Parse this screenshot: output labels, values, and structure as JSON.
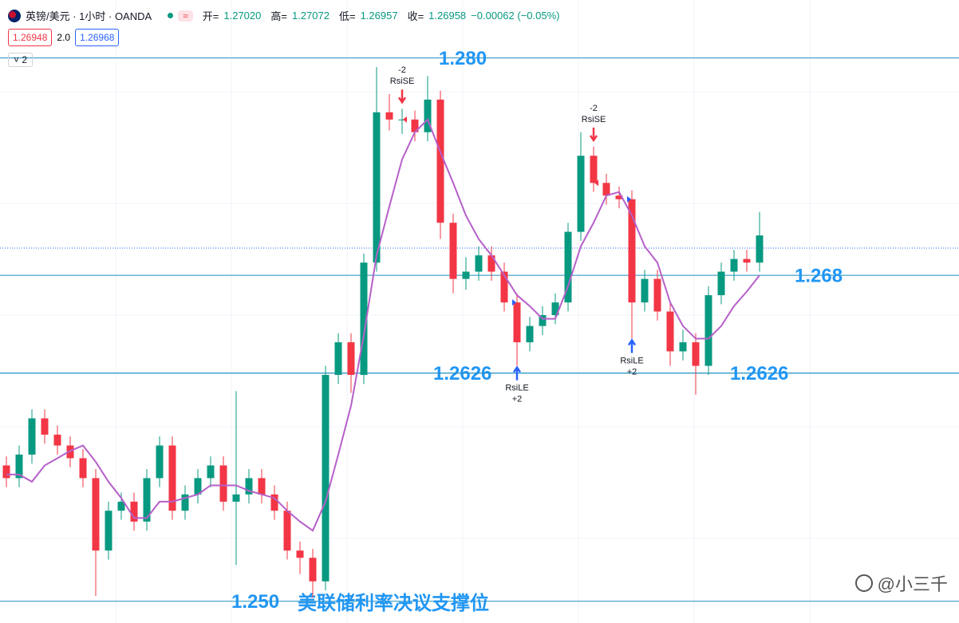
{
  "header": {
    "symbol": "英镑/美元 · 1小时 · OANDA",
    "badge": "≈",
    "ohlc": [
      {
        "key": "开=",
        "value": "1.27020"
      },
      {
        "key": "高=",
        "value": "1.27072"
      },
      {
        "key": "低=",
        "value": "1.26957"
      },
      {
        "key": "收=",
        "value": "1.26958"
      }
    ],
    "change": "−0.00062 (−0.05%)",
    "sell": "1.26948",
    "spread": "2.0",
    "buy": "1.26968",
    "indicators": "˅ 2"
  },
  "watermark": "@小三千",
  "chart_data": {
    "type": "candlestick",
    "ylim": [
      1.2488,
      1.2832
    ],
    "up_color": "#089981",
    "down_color": "#f23645",
    "open": [
      1.2575,
      1.2568,
      1.2581,
      1.2601,
      1.2592,
      1.2586,
      1.2579,
      1.2568,
      1.2528,
      1.255,
      1.2555,
      1.2544,
      1.2568,
      1.2586,
      1.255,
      1.2559,
      1.2568,
      1.2575,
      1.2555,
      1.2559,
      1.2568,
      1.2559,
      1.255,
      1.2528,
      1.2524,
      1.2511,
      1.2625,
      1.2643,
      1.2625,
      1.2687,
      1.277,
      1.2766,
      1.2766,
      1.2759,
      1.2777,
      1.2709,
      1.2678,
      1.2682,
      1.2691,
      1.2682,
      1.2665,
      1.2643,
      1.2652,
      1.2658,
      1.2665,
      1.2704,
      1.2746,
      1.2731,
      1.2724,
      1.2722,
      1.2665,
      1.2678,
      1.266,
      1.2638,
      1.2643,
      1.263,
      1.2669,
      1.2682,
      1.2689,
      1.2687
    ],
    "high": [
      1.258,
      1.2586,
      1.2606,
      1.2606,
      1.2597,
      1.2591,
      1.2584,
      1.2573,
      1.2555,
      1.256,
      1.256,
      1.2573,
      1.2591,
      1.2591,
      1.2564,
      1.2573,
      1.258,
      1.258,
      1.2616,
      1.2573,
      1.2573,
      1.2564,
      1.2555,
      1.2533,
      1.2529,
      1.263,
      1.2648,
      1.2648,
      1.2692,
      1.2795,
      1.278,
      1.2772,
      1.2771,
      1.279,
      1.2782,
      1.2714,
      1.269,
      1.2696,
      1.2696,
      1.2687,
      1.267,
      1.2657,
      1.2663,
      1.267,
      1.2709,
      1.2759,
      1.2751,
      1.2736,
      1.2729,
      1.2727,
      1.2683,
      1.2683,
      1.2665,
      1.265,
      1.2648,
      1.2674,
      1.2687,
      1.2694,
      1.2694,
      1.2715
    ],
    "low": [
      1.2563,
      1.2563,
      1.2576,
      1.2587,
      1.2581,
      1.2574,
      1.2563,
      1.2503,
      1.2523,
      1.2545,
      1.2539,
      1.2539,
      1.2563,
      1.2545,
      1.2545,
      1.2554,
      1.2563,
      1.255,
      1.252,
      1.2554,
      1.2554,
      1.2545,
      1.2523,
      1.2515,
      1.2502,
      1.2506,
      1.262,
      1.2615,
      1.262,
      1.2682,
      1.276,
      1.2758,
      1.2754,
      1.2754,
      1.27,
      1.267,
      1.2672,
      1.2677,
      1.2677,
      1.266,
      1.263,
      1.2638,
      1.2647,
      1.2653,
      1.266,
      1.2699,
      1.2726,
      1.2719,
      1.2717,
      1.2645,
      1.266,
      1.2655,
      1.263,
      1.2633,
      1.2614,
      1.2625,
      1.2664,
      1.2677,
      1.2682,
      1.2682
    ],
    "close": [
      1.2568,
      1.2581,
      1.2601,
      1.2592,
      1.2586,
      1.2579,
      1.2568,
      1.2528,
      1.255,
      1.2555,
      1.2544,
      1.2568,
      1.2586,
      1.255,
      1.2559,
      1.2568,
      1.2575,
      1.2555,
      1.2559,
      1.2568,
      1.2559,
      1.255,
      1.2528,
      1.2524,
      1.2511,
      1.2625,
      1.2643,
      1.2625,
      1.2687,
      1.277,
      1.2766,
      1.2766,
      1.2759,
      1.2777,
      1.2709,
      1.2678,
      1.2682,
      1.2691,
      1.2682,
      1.2665,
      1.2643,
      1.2652,
      1.2658,
      1.2665,
      1.2704,
      1.2746,
      1.2731,
      1.2724,
      1.2722,
      1.2665,
      1.2678,
      1.266,
      1.2638,
      1.2643,
      1.263,
      1.2669,
      1.2682,
      1.2689,
      1.2687,
      1.2702
    ],
    "ma": {
      "color": "#b65fc9",
      "values": [
        1.257,
        1.257,
        1.2566,
        1.2575,
        1.2579,
        1.2583,
        1.2586,
        1.2577,
        1.2566,
        1.2557,
        1.2546,
        1.2546,
        1.2555,
        1.2555,
        1.2557,
        1.2559,
        1.2564,
        1.2564,
        1.2564,
        1.2561,
        1.2559,
        1.2557,
        1.255,
        1.2544,
        1.2539,
        1.2555,
        1.2581,
        1.2608,
        1.2647,
        1.2691,
        1.2718,
        1.2744,
        1.2759,
        1.2766,
        1.2748,
        1.2731,
        1.2713,
        1.27,
        1.2691,
        1.268,
        1.2669,
        1.2663,
        1.2656,
        1.2656,
        1.2674,
        1.2696,
        1.2709,
        1.2724,
        1.2726,
        1.2713,
        1.2696,
        1.2687,
        1.2665,
        1.2652,
        1.2645,
        1.2645,
        1.2652,
        1.2663,
        1.2671,
        1.268
      ]
    },
    "last_price": 1.2695,
    "last_color": "#2962ff",
    "level_color": "#1f8fbf",
    "label_color": "#2196f3",
    "levels": [
      {
        "value": 1.28,
        "label": "1.280"
      },
      {
        "value": 1.268,
        "label": "1.268"
      },
      {
        "value": 1.2626,
        "label": "1.2626"
      },
      {
        "value": 1.2626,
        "label": "1.2626"
      },
      {
        "value": 1.25,
        "label": "1.250"
      }
    ],
    "support_note": "美联储利率决议支撑位",
    "signals": [
      {
        "name": "RsiSE",
        "qty": "-2"
      },
      {
        "name": "RsiSE",
        "qty": "-2"
      },
      {
        "name": "RsiLE",
        "qty": "+2"
      },
      {
        "name": "RsiLE",
        "qty": "+2"
      }
    ]
  }
}
